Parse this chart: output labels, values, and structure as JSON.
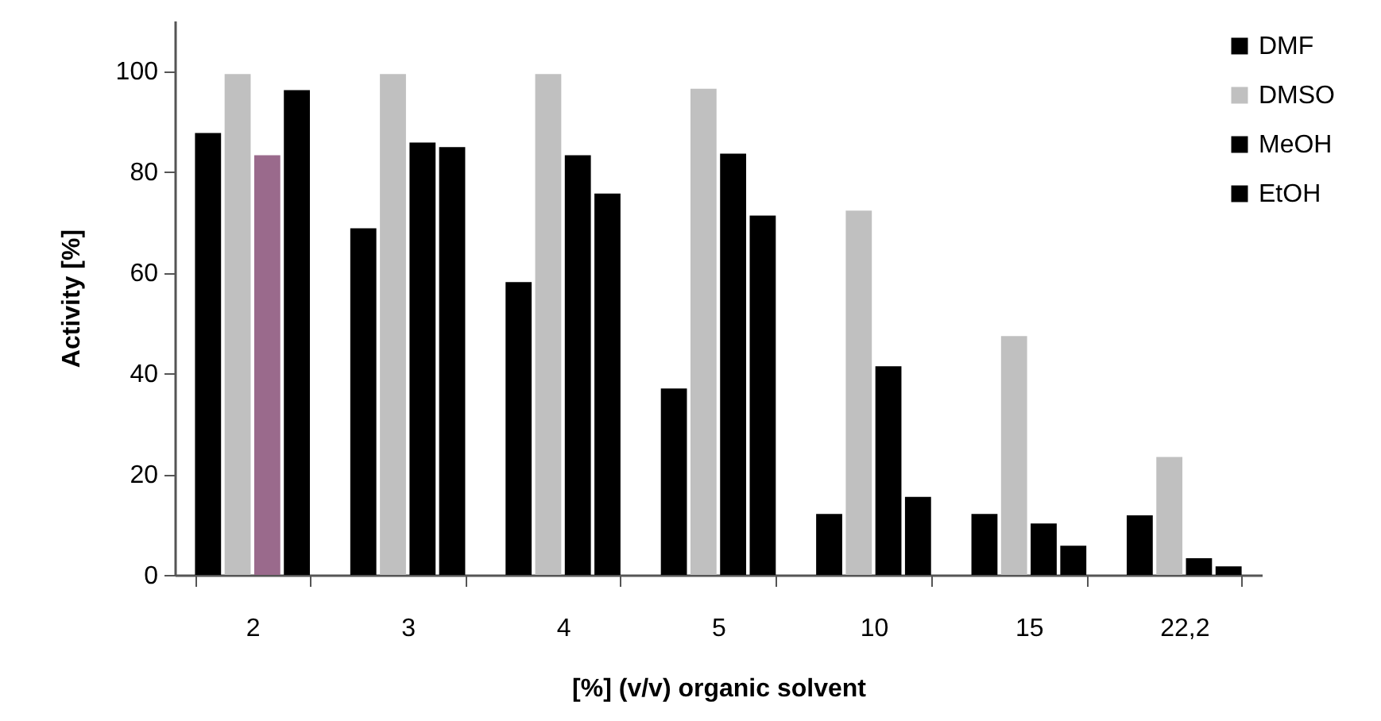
{
  "chart_data": {
    "type": "bar",
    "xlabel": "[%] (v/v) organic solvent",
    "ylabel": "Activity [%]",
    "categories": [
      "2",
      "3",
      "4",
      "5",
      "10",
      "15",
      "22,2"
    ],
    "series": [
      {
        "name": "DMF",
        "color": "#000000",
        "values": [
          87.7,
          68.8,
          58.1,
          37.0,
          12.1,
          12.1,
          11.8
        ]
      },
      {
        "name": "DMSO",
        "color": "#c0c0c0",
        "values": [
          99.4,
          99.4,
          99.4,
          96.5,
          72.3,
          47.4,
          23.4
        ]
      },
      {
        "name": "MeOH",
        "color": "#000000",
        "colors": [
          "#9a6a8c",
          "#000000",
          "#000000",
          "#000000",
          "#000000",
          "#000000",
          "#000000"
        ],
        "values": [
          83.3,
          85.8,
          83.3,
          83.6,
          41.4,
          10.2,
          3.3
        ]
      },
      {
        "name": "EtOH",
        "color": "#000000",
        "values": [
          96.2,
          84.9,
          75.7,
          71.3,
          15.5,
          5.8,
          1.7
        ]
      }
    ],
    "ylim": [
      0,
      110
    ],
    "yticks": [
      0,
      20,
      40,
      60,
      80,
      100
    ],
    "grid": false,
    "legend": "top right"
  }
}
